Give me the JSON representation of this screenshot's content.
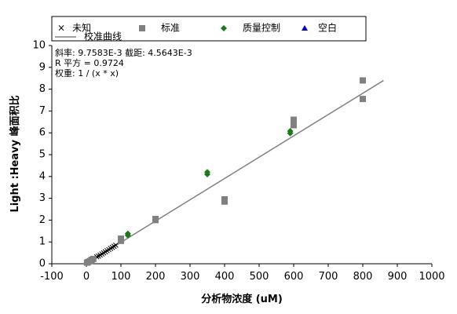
{
  "chart_data": {
    "type": "scatter",
    "xlabel": "分析物浓度 (uM)",
    "ylabel": "Light :Heavy 峰面积比",
    "xlim": [
      -100,
      1000
    ],
    "ylim": [
      0,
      10
    ],
    "x_ticks": [
      -100,
      0,
      100,
      200,
      300,
      400,
      500,
      600,
      700,
      800,
      900,
      1000
    ],
    "y_ticks": [
      0,
      1,
      2,
      3,
      4,
      5,
      6,
      7,
      8,
      9,
      10
    ],
    "grid": false,
    "legend_position": "top",
    "stats": [
      "斜率: 9.7583E-3 截距: 4.5643E-3",
      "R 平方 = 0.9724",
      "权重: 1 / (x * x)"
    ],
    "series": [
      {
        "name": "未知",
        "marker": "x",
        "color": "#000000",
        "points": [
          [
            30,
            0.32
          ],
          [
            35,
            0.35
          ],
          [
            40,
            0.4
          ],
          [
            45,
            0.45
          ],
          [
            50,
            0.5
          ],
          [
            55,
            0.55
          ],
          [
            60,
            0.6
          ],
          [
            65,
            0.65
          ],
          [
            70,
            0.7
          ],
          [
            75,
            0.75
          ],
          [
            80,
            0.8
          ],
          [
            85,
            0.85
          ]
        ]
      },
      {
        "name": "标准",
        "marker": "square",
        "color": "#808080",
        "points": [
          [
            2,
            0.05
          ],
          [
            5,
            0.08
          ],
          [
            10,
            0.12
          ],
          [
            15,
            0.18
          ],
          [
            20,
            0.22
          ],
          [
            100,
            1.05
          ],
          [
            100,
            1.15
          ],
          [
            200,
            2.0
          ],
          [
            200,
            2.05
          ],
          [
            400,
            2.85
          ],
          [
            400,
            2.95
          ],
          [
            600,
            6.35
          ],
          [
            600,
            6.45
          ],
          [
            600,
            6.6
          ],
          [
            800,
            7.55
          ],
          [
            800,
            8.4
          ]
        ]
      },
      {
        "name": "质量控制",
        "marker": "diamond",
        "color": "#1a7a1a",
        "points": [
          [
            120,
            1.3
          ],
          [
            120,
            1.38
          ],
          [
            350,
            4.1
          ],
          [
            350,
            4.2
          ],
          [
            590,
            5.98
          ],
          [
            590,
            6.08
          ]
        ]
      },
      {
        "name": "空白",
        "marker": "triangle",
        "color": "#0000cc",
        "points": []
      }
    ],
    "fit_line": {
      "name": "校准曲线",
      "color": "#808080",
      "x_range": [
        0,
        860
      ],
      "slope": 0.0097583,
      "intercept": 0.0045643
    }
  }
}
